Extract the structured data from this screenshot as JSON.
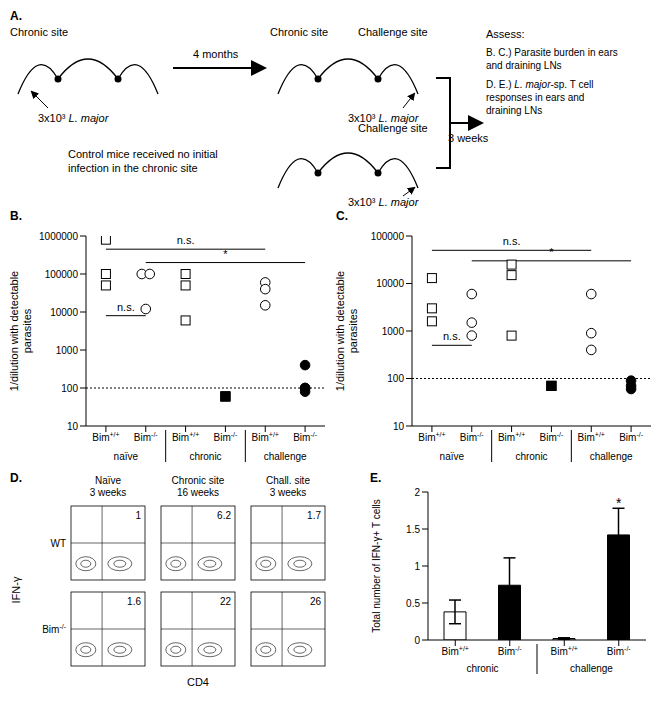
{
  "diagram": {
    "label": "A.",
    "chronic_initial": {
      "site": "Chronic site",
      "dose": "3x10³ L. major"
    },
    "interval": "4 months",
    "infected": {
      "left_site": "Chronic site",
      "right_site": "Challenge site",
      "dose": "3x10³ L. major"
    },
    "control": {
      "right_site": "Challenge site",
      "dose": "3x10³ L. major",
      "note": [
        "Control mice received no initial",
        "infection in the chronic site"
      ]
    },
    "wait": "3 weeks",
    "assess": {
      "title": "Assess:",
      "items": [
        [
          "B. C.) Parasite burden in ears",
          "and draining LNs"
        ],
        [
          "D. E.) L. major-sp. T cell",
          "responses in ears and",
          "draining LNs"
        ]
      ]
    }
  },
  "chart_data": [
    {
      "label": "B.",
      "type": "scatter",
      "ylabel": [
        "1/dilution with detectable",
        "parasites"
      ],
      "log": "y",
      "categories": [
        "Bim+/+",
        "Bim-/-",
        "Bim+/+",
        "Bim-/-",
        "Bim+/+",
        "Bim-/-"
      ],
      "groups": [
        "naïve",
        "chronic",
        "challenge"
      ],
      "ylim": [
        10,
        1000000
      ],
      "yticks": [
        10,
        100,
        1000,
        10000,
        100000,
        1000000
      ],
      "threshold": 100,
      "series": [
        {
          "marker": "square-open",
          "color": "#000000",
          "x": [
            0,
            0,
            0
          ],
          "values": [
            800000,
            100000,
            50000
          ]
        },
        {
          "marker": "circle-open",
          "color": "#000000",
          "x": [
            0.9,
            1.1,
            1
          ],
          "values": [
            100000,
            100000,
            12000
          ]
        },
        {
          "marker": "square-open",
          "color": "#000000",
          "x": [
            2,
            2,
            2
          ],
          "values": [
            100000,
            50000,
            6000
          ]
        },
        {
          "marker": "square",
          "color": "#000000",
          "x": [
            3,
            3,
            3
          ],
          "values": [
            60,
            60,
            60
          ]
        },
        {
          "marker": "circle-open",
          "color": "#000000",
          "x": [
            4,
            4,
            4
          ],
          "values": [
            60000,
            40000,
            15000
          ]
        },
        {
          "marker": "circle",
          "color": "#000000",
          "x": [
            5,
            5,
            5,
            5
          ],
          "values": [
            400,
            100,
            100,
            80
          ]
        }
      ],
      "comparisons": [
        {
          "from": 0,
          "to": 4,
          "y": 450000,
          "label": "n.s."
        },
        {
          "from": 1,
          "to": 5,
          "y": 200000,
          "label": "*"
        },
        {
          "from": 0,
          "to": 1,
          "y": 8000,
          "label": "n.s."
        }
      ]
    },
    {
      "label": "C.",
      "type": "scatter",
      "ylabel": [
        "1/dilution with detectable",
        "parasites"
      ],
      "log": "y",
      "categories": [
        "Bim+/+",
        "Bim-/-",
        "Bim+/+",
        "Bim-/-",
        "Bim+/+",
        "Bim-/-"
      ],
      "groups": [
        "naïve",
        "chronic",
        "challenge"
      ],
      "ylim": [
        10,
        100000
      ],
      "yticks": [
        10,
        100,
        1000,
        10000,
        100000
      ],
      "threshold": 100,
      "series": [
        {
          "marker": "square-open",
          "color": "#000000",
          "x": [
            0,
            0,
            0
          ],
          "values": [
            13000,
            3000,
            1600
          ]
        },
        {
          "marker": "circle-open",
          "color": "#000000",
          "x": [
            1,
            1,
            1
          ],
          "values": [
            6000,
            1500,
            800
          ]
        },
        {
          "marker": "square-open",
          "color": "#000000",
          "x": [
            2,
            2,
            2
          ],
          "values": [
            25000,
            15000,
            800
          ]
        },
        {
          "marker": "square",
          "color": "#000000",
          "x": [
            3,
            3,
            3
          ],
          "values": [
            70,
            70,
            70
          ]
        },
        {
          "marker": "circle-open",
          "color": "#000000",
          "x": [
            4,
            4,
            4
          ],
          "values": [
            6000,
            900,
            400
          ]
        },
        {
          "marker": "circle",
          "color": "#000000",
          "x": [
            5,
            5,
            5
          ],
          "values": [
            90,
            70,
            60
          ]
        }
      ],
      "comparisons": [
        {
          "from": 0,
          "to": 4,
          "y": 50000,
          "label": "n.s."
        },
        {
          "from": 1,
          "to": 5,
          "y": 30000,
          "label": "*"
        },
        {
          "from": 0,
          "to": 1,
          "y": 500,
          "label": "n.s."
        }
      ]
    },
    {
      "label": "E.",
      "type": "bar",
      "ylabel": "Total number of IFN-γ+ T cells",
      "categories": [
        "Bim+/+",
        "Bim-/-",
        "Bim+/+",
        "Bim-/-"
      ],
      "groups": [
        "chronic",
        "challenge"
      ],
      "values": [
        0.38,
        0.74,
        0.02,
        1.42
      ],
      "errors": [
        0.16,
        0.37,
        0.01,
        0.36
      ],
      "colors": [
        "#ffffff",
        "#000000",
        "#ffffff",
        "#000000"
      ],
      "ylim": [
        0,
        2
      ],
      "yticks": [
        0,
        0.5,
        1,
        1.5,
        2
      ],
      "annotations": [
        {
          "index": 3,
          "y": 1.85,
          "text": "*"
        }
      ]
    }
  ],
  "flow": {
    "label": "D.",
    "y_label": "IFN-γ",
    "x_label": "CD4",
    "columns": [
      [
        "Naïve",
        "3 weeks"
      ],
      [
        "Chronic site",
        "16 weeks"
      ],
      [
        "Chall. site",
        "3 weeks"
      ]
    ],
    "rows": [
      "WT",
      "Bim-/-"
    ],
    "percentages": [
      [
        1,
        6.2,
        1.7
      ],
      [
        1.6,
        22,
        26
      ]
    ]
  }
}
